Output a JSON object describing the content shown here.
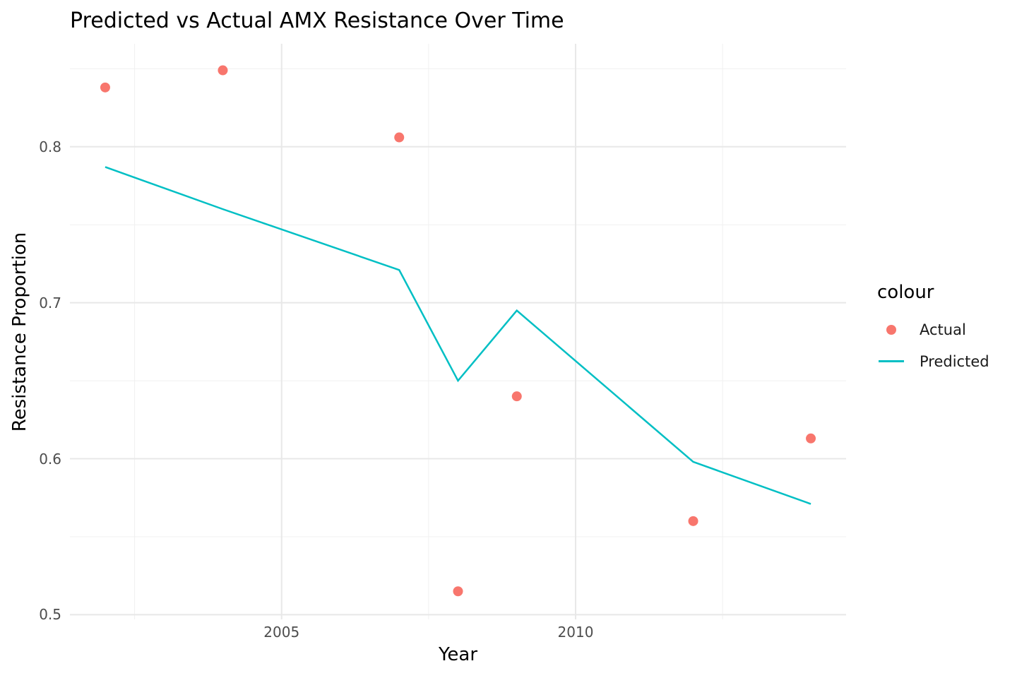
{
  "chart_data": {
    "type": "line",
    "title": "Predicted vs Actual AMX Resistance Over Time",
    "xlabel": "Year",
    "ylabel": "Resistance Proportion",
    "xlim": [
      2001.4,
      2014.6
    ],
    "ylim": [
      0.497,
      0.866
    ],
    "grid": "major+minor",
    "x_axis": {
      "major_ticks": [
        2005,
        2010
      ],
      "tick_labels": [
        "2005",
        "2010"
      ],
      "minor_ticks": [
        2002.5,
        2007.5,
        2012.5
      ]
    },
    "y_axis": {
      "major_ticks": [
        0.5,
        0.6,
        0.7,
        0.8
      ],
      "tick_labels": [
        "0.5",
        "0.6",
        "0.7",
        "0.8"
      ],
      "minor_ticks": [
        0.55,
        0.65,
        0.75,
        0.85
      ]
    },
    "legend": {
      "title": "colour",
      "position": "right",
      "entries": [
        {
          "label": "Actual",
          "glyph": "point",
          "color": "#F8766D"
        },
        {
          "label": "Predicted",
          "glyph": "line",
          "color": "#00BFC4"
        }
      ]
    },
    "series": [
      {
        "name": "Actual",
        "kind": "scatter",
        "color": "#F8766D",
        "x": [
          2002,
          2004,
          2007,
          2008,
          2009,
          2012,
          2014
        ],
        "y": [
          0.838,
          0.849,
          0.806,
          0.515,
          0.64,
          0.56,
          0.613
        ]
      },
      {
        "name": "Predicted",
        "kind": "line",
        "color": "#00BFC4",
        "x": [
          2002,
          2004,
          2007,
          2008,
          2009,
          2012,
          2014
        ],
        "y": [
          0.787,
          0.76,
          0.721,
          0.65,
          0.695,
          0.598,
          0.571
        ]
      }
    ],
    "style": {
      "grid_major_color": "#E8E8E8",
      "grid_minor_color": "#F0F0F0",
      "tick_text_color": "#4D4D4D",
      "point_radius": 7,
      "line_width": 2.5
    }
  }
}
